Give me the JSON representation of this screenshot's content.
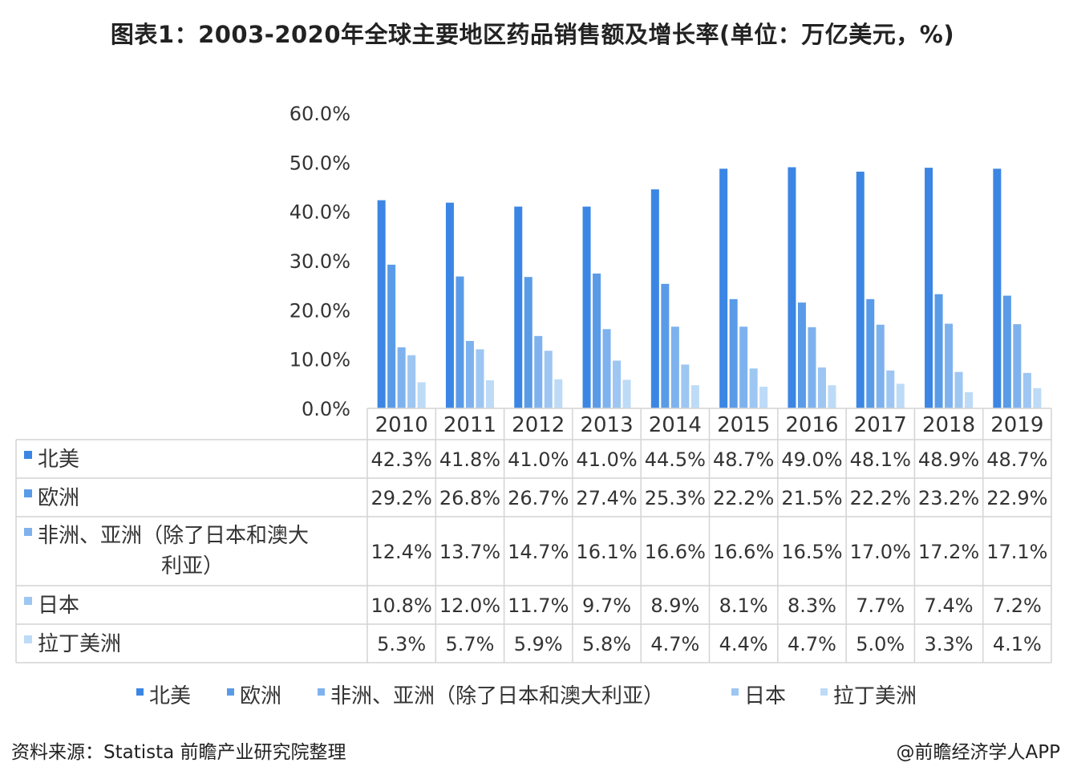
{
  "title": "图表1：2003-2020年全球主要地区药品销售额及增长率(单位：万亿美元，%)",
  "source": "资料来源：Statista 前瞻产业研究院整理",
  "watermark": "@前瞻经济学人APP",
  "chart_data": {
    "type": "bar",
    "categories": [
      "2010",
      "2011",
      "2012",
      "2013",
      "2014",
      "2015",
      "2016",
      "2017",
      "2018",
      "2019"
    ],
    "series": [
      {
        "name": "北美",
        "color": "#3b86e4",
        "values": [
          42.3,
          41.8,
          41.0,
          41.0,
          44.5,
          48.7,
          49.0,
          48.1,
          48.9,
          48.7
        ],
        "labels": [
          "42.3%",
          "41.8%",
          "41.0%",
          "41.0%",
          "44.5%",
          "48.7%",
          "49.0%",
          "48.1%",
          "48.9%",
          "48.7%"
        ]
      },
      {
        "name": "欧洲",
        "color": "#5a9be8",
        "values": [
          29.2,
          26.8,
          26.7,
          27.4,
          25.3,
          22.2,
          21.5,
          22.2,
          23.2,
          22.9
        ],
        "labels": [
          "29.2%",
          "26.8%",
          "26.7%",
          "27.4%",
          "25.3%",
          "22.2%",
          "21.5%",
          "22.2%",
          "23.2%",
          "22.9%"
        ]
      },
      {
        "name": "非洲、亚洲（除了日本和澳大利亚）",
        "color": "#7eb2ee",
        "values": [
          12.4,
          13.7,
          14.7,
          16.1,
          16.6,
          16.6,
          16.5,
          17.0,
          17.2,
          17.1
        ],
        "labels": [
          "12.4%",
          "13.7%",
          "14.7%",
          "16.1%",
          "16.6%",
          "16.6%",
          "16.5%",
          "17.0%",
          "17.2%",
          "17.1%"
        ]
      },
      {
        "name": "日本",
        "color": "#9dc6f2",
        "values": [
          10.8,
          12.0,
          11.7,
          9.7,
          8.9,
          8.1,
          8.3,
          7.7,
          7.4,
          7.2
        ],
        "labels": [
          "10.8%",
          "12.0%",
          "11.7%",
          "9.7%",
          "8.9%",
          "8.1%",
          "8.3%",
          "7.7%",
          "7.4%",
          "7.2%"
        ]
      },
      {
        "name": "拉丁美洲",
        "color": "#bddbf7",
        "values": [
          5.3,
          5.7,
          5.9,
          5.8,
          4.7,
          4.4,
          4.7,
          5.0,
          3.3,
          4.1
        ],
        "labels": [
          "5.3%",
          "5.7%",
          "5.9%",
          "5.8%",
          "4.7%",
          "4.4%",
          "4.7%",
          "5.0%",
          "3.3%",
          "4.1%"
        ]
      }
    ],
    "ylim": [
      0,
      60
    ],
    "yticks": [
      "0.0%",
      "10.0%",
      "20.0%",
      "30.0%",
      "40.0%",
      "50.0%",
      "60.0%"
    ],
    "legend_position": "bottom",
    "grid": false
  }
}
